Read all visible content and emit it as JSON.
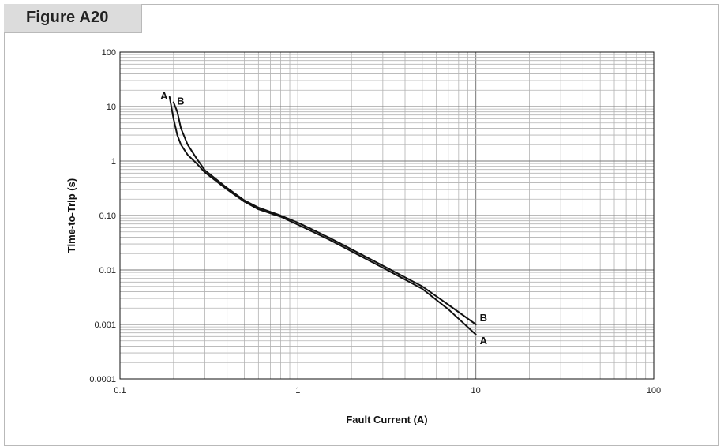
{
  "figure": {
    "label": "Figure A20"
  },
  "chart_data": {
    "type": "line",
    "title": "",
    "xlabel": "Fault Current (A)",
    "ylabel": "Time-to-Trip (s)",
    "x_scale": "log",
    "y_scale": "log",
    "xlim": [
      0.1,
      100
    ],
    "ylim": [
      0.0001,
      100
    ],
    "grid": true,
    "x_ticks": [
      {
        "value": 0.1,
        "label": "0.1"
      },
      {
        "value": 1,
        "label": "1"
      },
      {
        "value": 10,
        "label": "10"
      },
      {
        "value": 100,
        "label": "100"
      }
    ],
    "y_ticks": [
      {
        "value": 0.0001,
        "label": "0.0001"
      },
      {
        "value": 0.001,
        "label": "0.001"
      },
      {
        "value": 0.01,
        "label": "0.01"
      },
      {
        "value": 0.1,
        "label": "0.10"
      },
      {
        "value": 1,
        "label": "1"
      },
      {
        "value": 10,
        "label": "10"
      },
      {
        "value": 100,
        "label": "100"
      }
    ],
    "series": [
      {
        "name": "A",
        "points": [
          [
            0.19,
            15
          ],
          [
            0.2,
            6
          ],
          [
            0.21,
            3
          ],
          [
            0.22,
            2
          ],
          [
            0.24,
            1.3
          ],
          [
            0.27,
            0.9
          ],
          [
            0.3,
            0.62
          ],
          [
            0.4,
            0.3
          ],
          [
            0.5,
            0.18
          ],
          [
            0.6,
            0.13
          ],
          [
            0.8,
            0.095
          ],
          [
            1,
            0.068
          ],
          [
            1.5,
            0.036
          ],
          [
            2,
            0.022
          ],
          [
            3,
            0.011
          ],
          [
            5,
            0.0045
          ],
          [
            7,
            0.0019
          ],
          [
            10,
            0.00065
          ]
        ]
      },
      {
        "name": "B",
        "points": [
          [
            0.2,
            12
          ],
          [
            0.21,
            8
          ],
          [
            0.22,
            4
          ],
          [
            0.24,
            2
          ],
          [
            0.27,
            1.1
          ],
          [
            0.3,
            0.68
          ],
          [
            0.4,
            0.32
          ],
          [
            0.5,
            0.19
          ],
          [
            0.6,
            0.14
          ],
          [
            0.8,
            0.1
          ],
          [
            1,
            0.074
          ],
          [
            1.5,
            0.039
          ],
          [
            2,
            0.024
          ],
          [
            3,
            0.012
          ],
          [
            5,
            0.005
          ],
          [
            7,
            0.0023
          ],
          [
            10,
            0.001
          ]
        ]
      }
    ]
  }
}
